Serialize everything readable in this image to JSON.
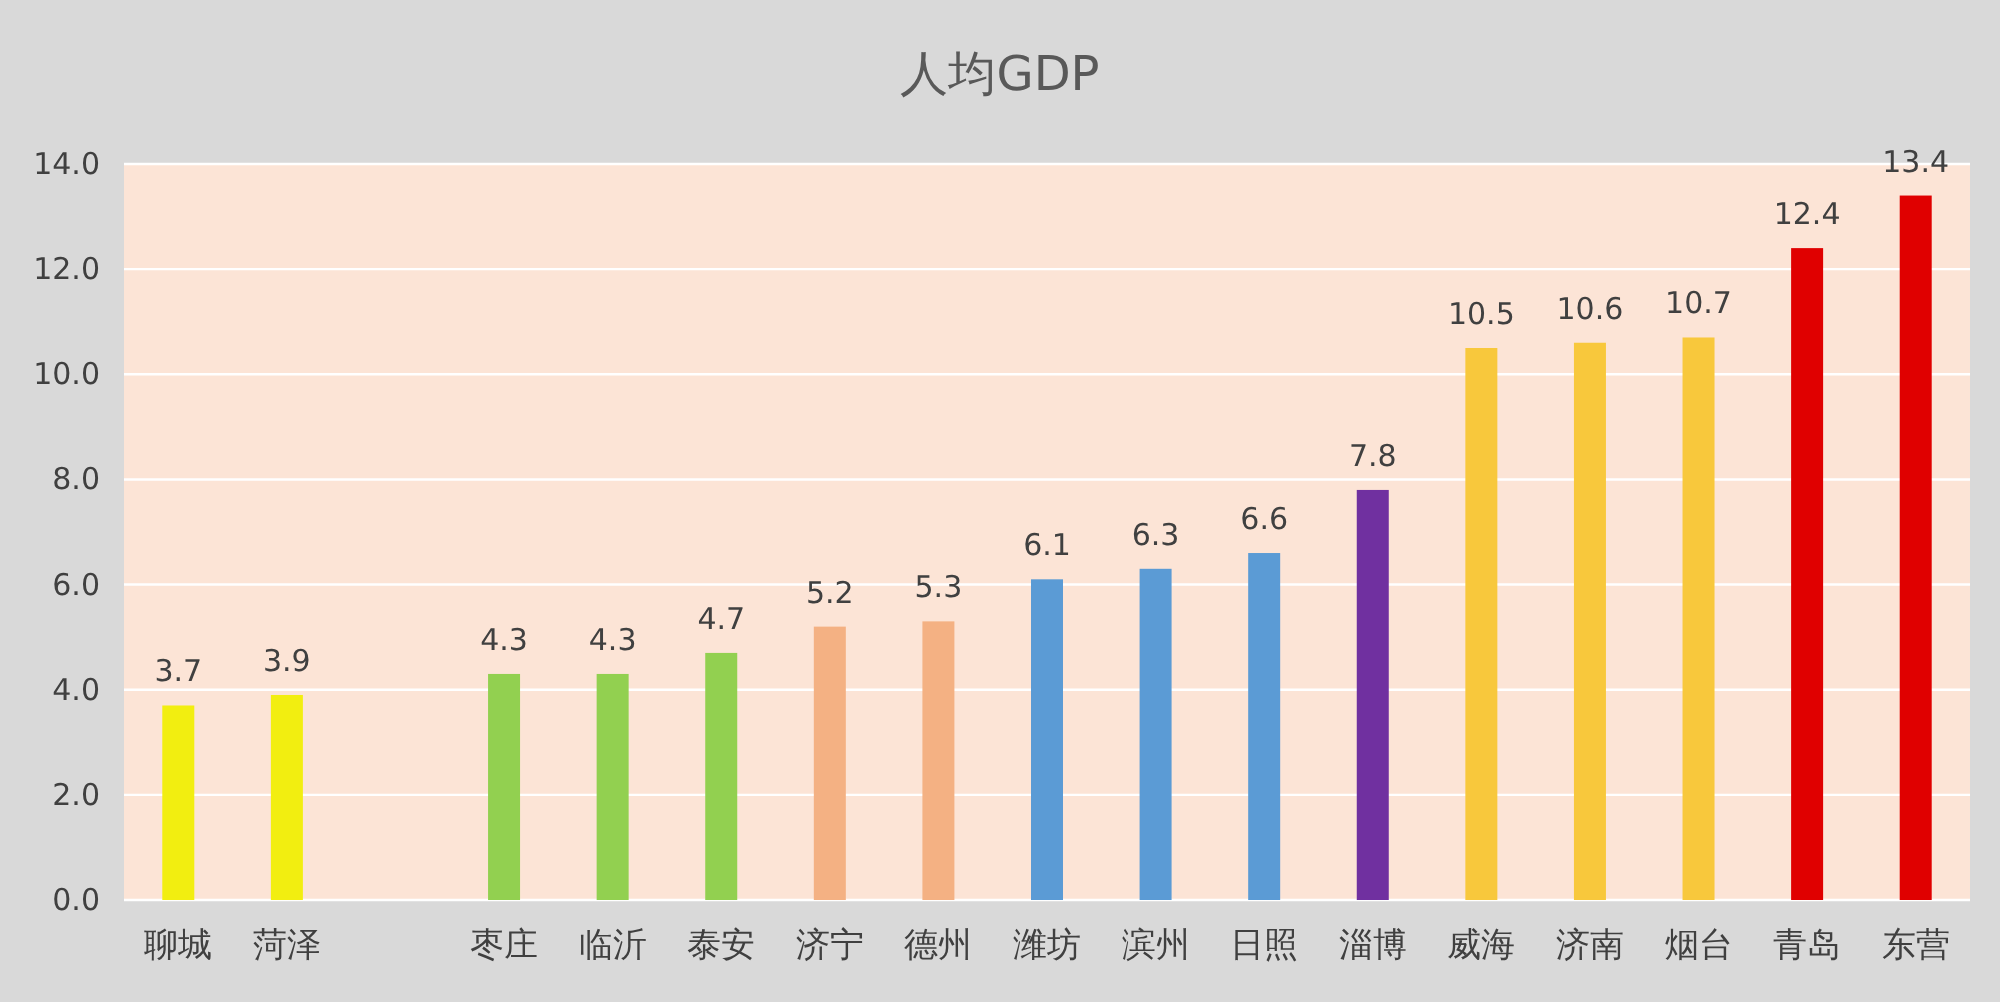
{
  "chart_data": {
    "type": "bar",
    "title": "人均GDP",
    "categories": [
      "聊城",
      "菏泽",
      null,
      "枣庄",
      "临沂",
      "泰安",
      "济宁",
      "德州",
      "潍坊",
      "滨州",
      "日照",
      "淄博",
      "威海",
      "济南",
      "烟台",
      "青岛",
      "东营"
    ],
    "values": [
      3.7,
      3.9,
      null,
      4.3,
      4.3,
      4.7,
      5.2,
      5.3,
      6.1,
      6.3,
      6.6,
      7.8,
      10.5,
      10.6,
      10.7,
      12.4,
      13.4
    ],
    "colors": [
      "#f2ee10",
      "#f2ee10",
      null,
      "#92d050",
      "#92d050",
      "#92d050",
      "#f4b183",
      "#f4b183",
      "#5b9bd5",
      "#5b9bd5",
      "#5b9bd5",
      "#7030a0",
      "#f8c83c",
      "#f8c83c",
      "#f8c83c",
      "#e00000",
      "#e00000"
    ],
    "ylim": [
      0,
      14
    ],
    "yticks": [
      {
        "value": 0,
        "label": "0.0"
      },
      {
        "value": 2,
        "label": "2.0"
      },
      {
        "value": 4,
        "label": "4.0"
      },
      {
        "value": 6,
        "label": "6.0"
      },
      {
        "value": 8,
        "label": "8.0"
      },
      {
        "value": 10,
        "label": "10.0"
      },
      {
        "value": 12,
        "label": "12.0"
      },
      {
        "value": 14,
        "label": "14.0"
      }
    ],
    "grid": "y",
    "data_labels": true
  }
}
